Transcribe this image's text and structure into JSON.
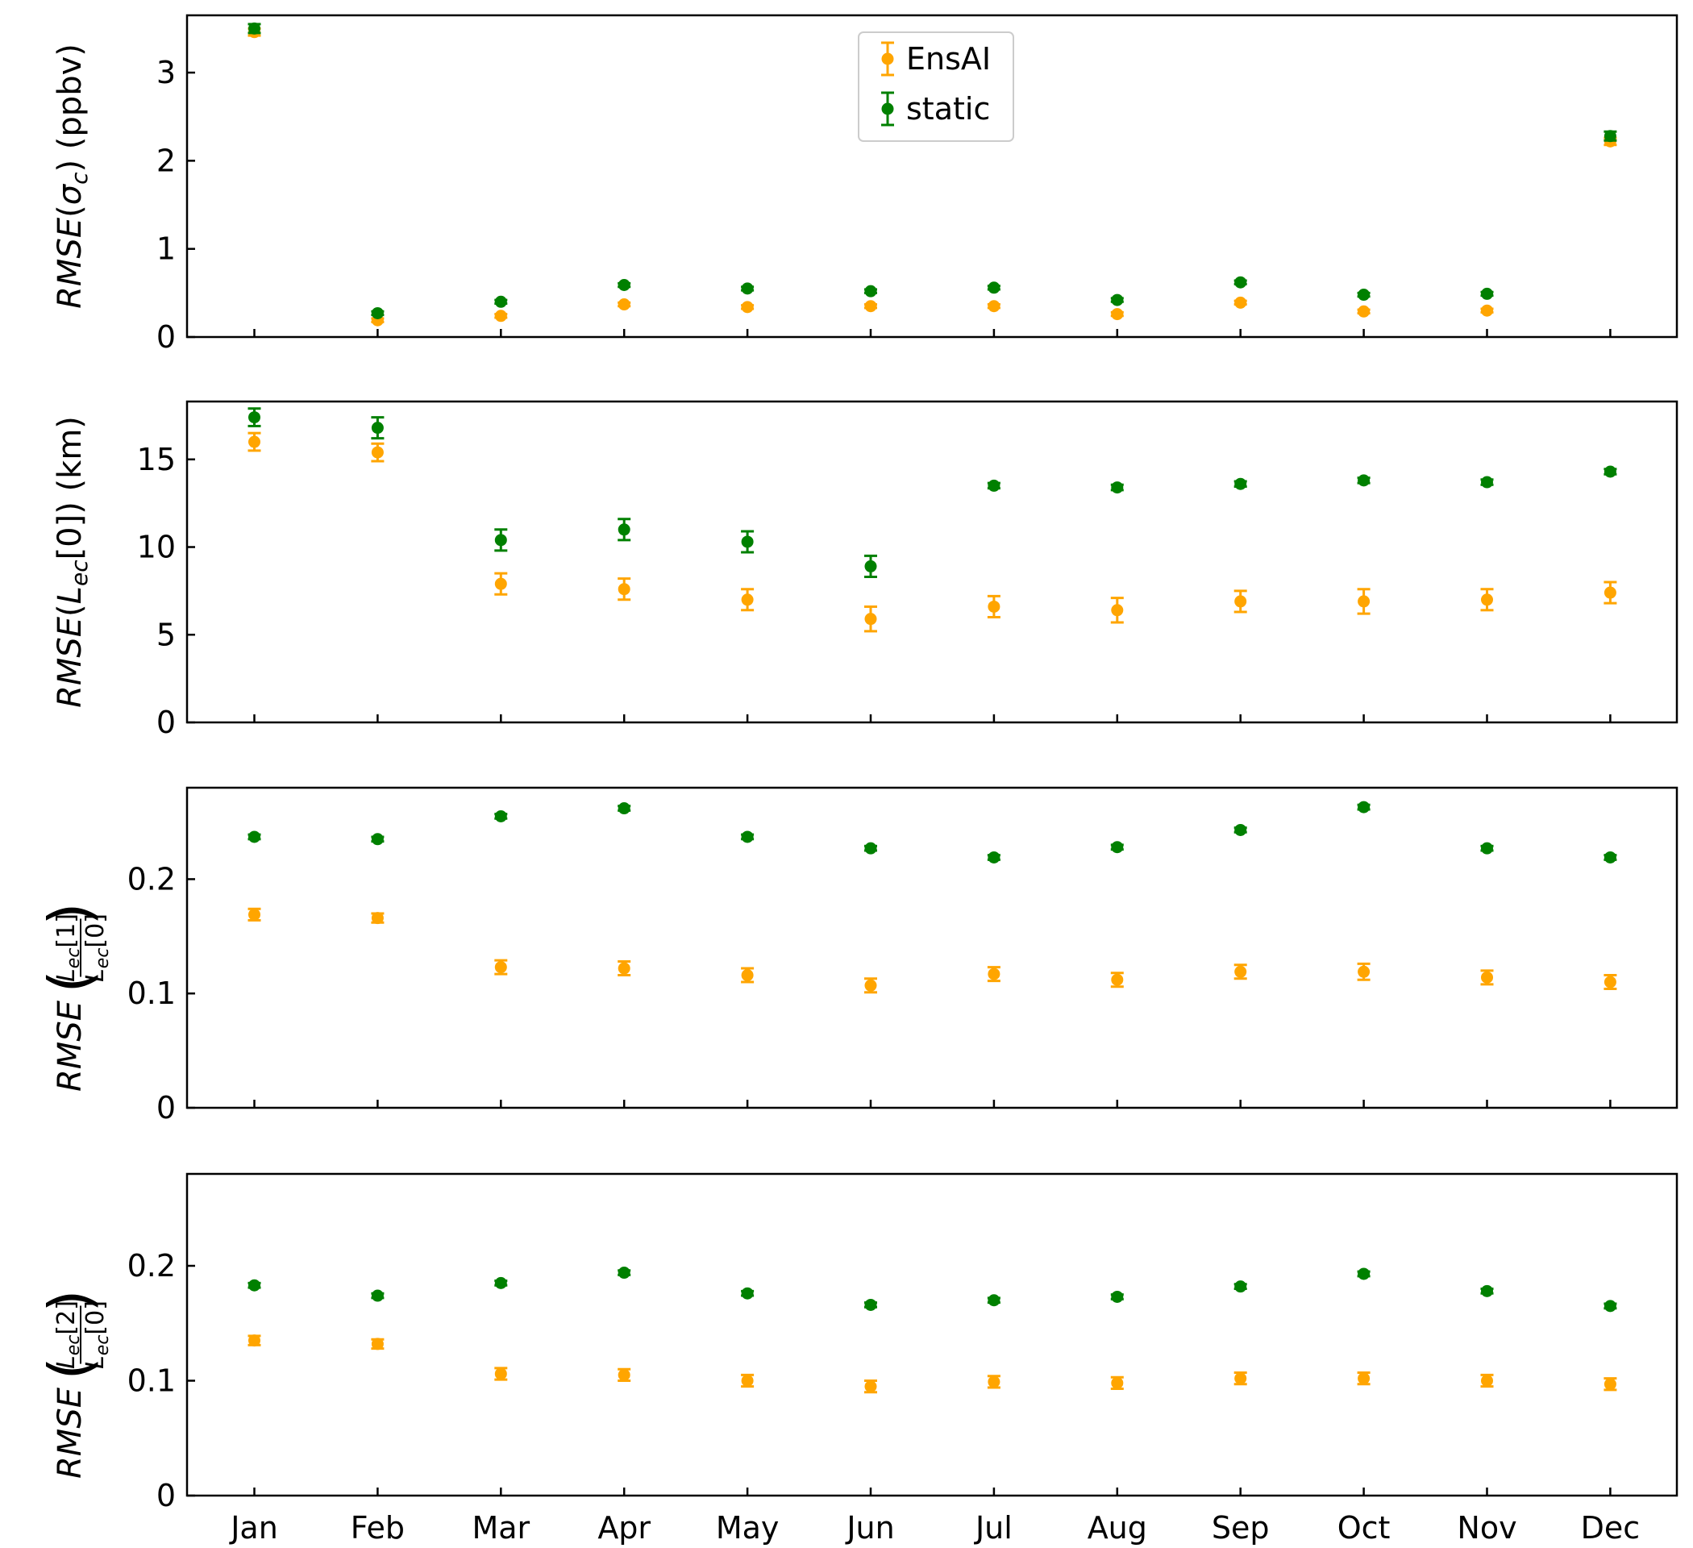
{
  "chart_data": [
    {
      "type": "scatter",
      "panel": "sigma_c",
      "ylabel": {
        "pre": "RMSE(",
        "sym": "σ",
        "sub": "c",
        "post": ") (ppbv)"
      },
      "ylim": [
        0,
        3.65
      ],
      "yticks": [
        0,
        1,
        2,
        3
      ],
      "ytick_labels": [
        "0",
        "1",
        "2",
        "3"
      ],
      "legend": {
        "placement": "top-center",
        "entries": [
          "EnsAI",
          "static"
        ]
      },
      "series": [
        {
          "name": "EnsAI",
          "color": "#ffa500",
          "values": [
            3.46,
            0.19,
            0.24,
            0.37,
            0.34,
            0.35,
            0.35,
            0.26,
            0.39,
            0.29,
            0.3,
            2.22
          ],
          "errors": [
            0.04,
            0.02,
            0.02,
            0.02,
            0.02,
            0.02,
            0.02,
            0.02,
            0.02,
            0.02,
            0.02,
            0.04
          ]
        },
        {
          "name": "static",
          "color": "#008000",
          "values": [
            3.5,
            0.27,
            0.4,
            0.59,
            0.55,
            0.52,
            0.56,
            0.42,
            0.62,
            0.48,
            0.49,
            2.28
          ],
          "errors": [
            0.05,
            0.02,
            0.02,
            0.02,
            0.02,
            0.02,
            0.02,
            0.02,
            0.02,
            0.02,
            0.02,
            0.05
          ]
        }
      ]
    },
    {
      "type": "scatter",
      "panel": "Lec0",
      "ylabel": {
        "pre": "RMSE(",
        "sym": "L",
        "sub": "ec",
        "post": "[0]) (km)"
      },
      "ylim": [
        0,
        18.3
      ],
      "yticks": [
        0,
        5,
        10,
        15
      ],
      "ytick_labels": [
        "0",
        "5",
        "10",
        "15"
      ],
      "series": [
        {
          "name": "EnsAI",
          "color": "#ffa500",
          "values": [
            16.0,
            15.4,
            7.9,
            7.6,
            7.0,
            5.9,
            6.6,
            6.4,
            6.9,
            6.9,
            7.0,
            7.4
          ],
          "errors": [
            0.5,
            0.5,
            0.6,
            0.6,
            0.6,
            0.7,
            0.6,
            0.7,
            0.6,
            0.7,
            0.6,
            0.6
          ]
        },
        {
          "name": "static",
          "color": "#008000",
          "values": [
            17.4,
            16.8,
            10.4,
            11.0,
            10.3,
            8.9,
            13.5,
            13.4,
            13.6,
            13.8,
            13.7,
            14.3
          ],
          "errors": [
            0.5,
            0.6,
            0.6,
            0.6,
            0.6,
            0.6,
            0.15,
            0.15,
            0.15,
            0.15,
            0.15,
            0.15
          ]
        }
      ]
    },
    {
      "type": "scatter",
      "panel": "ratio1",
      "ylabel": {
        "pre": "RMSE",
        "num": "[1]",
        "den": "[0]",
        "sym": "L",
        "sub": "ec"
      },
      "ylim": [
        0,
        0.28
      ],
      "yticks": [
        0,
        0.1,
        0.2
      ],
      "ytick_labels": [
        "0",
        "0.1",
        "0.2"
      ],
      "series": [
        {
          "name": "EnsAI",
          "color": "#ffa500",
          "values": [
            0.169,
            0.166,
            0.123,
            0.122,
            0.116,
            0.107,
            0.117,
            0.112,
            0.119,
            0.119,
            0.114,
            0.11
          ],
          "errors": [
            0.005,
            0.004,
            0.006,
            0.006,
            0.006,
            0.006,
            0.006,
            0.006,
            0.006,
            0.007,
            0.006,
            0.006
          ]
        },
        {
          "name": "static",
          "color": "#008000",
          "values": [
            0.237,
            0.235,
            0.255,
            0.262,
            0.237,
            0.227,
            0.219,
            0.228,
            0.243,
            0.263,
            0.227,
            0.219
          ],
          "errors": [
            0.002,
            0.002,
            0.002,
            0.002,
            0.002,
            0.002,
            0.002,
            0.002,
            0.002,
            0.002,
            0.002,
            0.002
          ]
        }
      ]
    },
    {
      "type": "scatter",
      "panel": "ratio2",
      "ylabel": {
        "pre": "RMSE",
        "num": "[2]",
        "den": "[0]",
        "sym": "L",
        "sub": "ec"
      },
      "ylim": [
        0,
        0.28
      ],
      "yticks": [
        0,
        0.1,
        0.2
      ],
      "ytick_labels": [
        "0",
        "0.1",
        "0.2"
      ],
      "xlabels": [
        "Jan",
        "Feb",
        "Mar",
        "Apr",
        "May",
        "Jun",
        "Jul",
        "Aug",
        "Sep",
        "Oct",
        "Nov",
        "Dec"
      ],
      "series": [
        {
          "name": "EnsAI",
          "color": "#ffa500",
          "values": [
            0.135,
            0.132,
            0.106,
            0.105,
            0.1,
            0.095,
            0.099,
            0.098,
            0.102,
            0.102,
            0.1,
            0.097
          ],
          "errors": [
            0.004,
            0.004,
            0.005,
            0.005,
            0.005,
            0.005,
            0.005,
            0.005,
            0.005,
            0.005,
            0.005,
            0.005
          ]
        },
        {
          "name": "static",
          "color": "#008000",
          "values": [
            0.183,
            0.174,
            0.185,
            0.194,
            0.176,
            0.166,
            0.17,
            0.173,
            0.182,
            0.193,
            0.178,
            0.165
          ],
          "errors": [
            0.002,
            0.002,
            0.002,
            0.002,
            0.002,
            0.002,
            0.002,
            0.002,
            0.002,
            0.002,
            0.002,
            0.002
          ]
        }
      ]
    }
  ]
}
